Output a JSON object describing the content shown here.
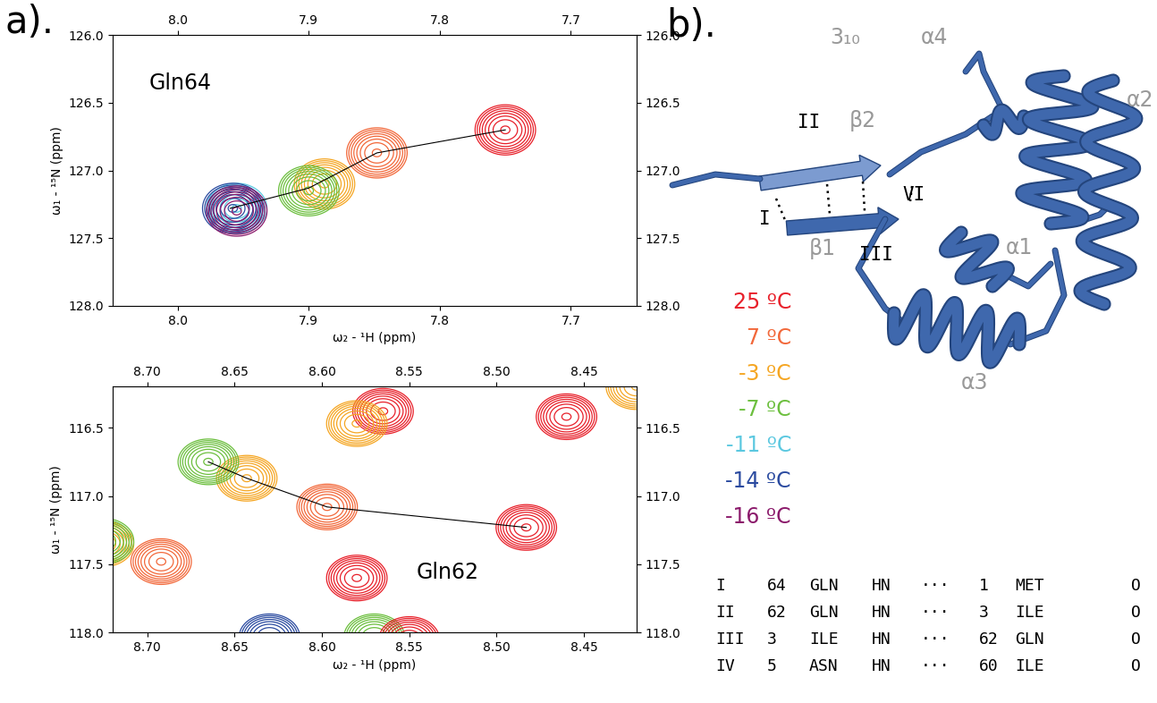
{
  "panel_labels": [
    "a).",
    "b)."
  ],
  "temperatures": [
    {
      "name": "25 ºC",
      "color": "#e8202a"
    },
    {
      "name": "7 ºC",
      "color": "#f2683a"
    },
    {
      "name": "-3 ºC",
      "color": "#f5a623"
    },
    {
      "name": "-7 ºC",
      "color": "#6cbf3e"
    },
    {
      "name": "-11 ºC",
      "color": "#5bc8e0"
    },
    {
      "name": "-14 ºC",
      "color": "#2b4ba0"
    },
    {
      "name": "-16 ºC",
      "color": "#8b1a6b"
    }
  ],
  "chart_data": [
    {
      "type": "contour",
      "label": "Gln64",
      "x_label": "ω₂ - ¹H (ppm)",
      "y_label": "ω₁ - ¹⁵N (ppm)",
      "xlim": [
        8.05,
        7.65
      ],
      "ylim": [
        128.0,
        126.0
      ],
      "xticks": [
        {
          "value": 8.0,
          "label": "8.0"
        },
        {
          "value": 7.9,
          "label": "7.9"
        },
        {
          "value": 7.8,
          "label": "7.8"
        },
        {
          "value": 7.7,
          "label": "7.7"
        }
      ],
      "yticks": [
        {
          "value": 126.0,
          "label": "126.0"
        },
        {
          "value": 126.5,
          "label": "126.5"
        },
        {
          "value": 127.0,
          "label": "127.0"
        },
        {
          "value": 127.5,
          "label": "127.5"
        },
        {
          "value": 128.0,
          "label": "128.0"
        }
      ],
      "peaks": [
        {
          "x": 7.75,
          "y": 126.7,
          "temperature": "25 ºC"
        },
        {
          "x": 7.848,
          "y": 126.87,
          "temperature": "7 ºC"
        },
        {
          "x": 7.888,
          "y": 127.1,
          "temperature": "-3 ºC"
        },
        {
          "x": 7.9,
          "y": 127.15,
          "temperature": "-7 ºC"
        },
        {
          "x": 7.955,
          "y": 127.28,
          "temperature": "-11 ºC"
        },
        {
          "x": 7.958,
          "y": 127.28,
          "temperature": "-14 ºC"
        },
        {
          "x": 7.955,
          "y": 127.3,
          "temperature": "-16 ºC"
        }
      ],
      "trace": {
        "x": [
          7.75,
          7.848,
          7.9,
          7.96
        ],
        "y": [
          126.7,
          126.87,
          127.13,
          127.28
        ]
      }
    },
    {
      "type": "contour",
      "label": "Gln62",
      "x_label": "ω₂ - ¹H (ppm)",
      "y_label": "ω₁ - ¹⁵N (ppm)",
      "xlim": [
        8.72,
        8.42
      ],
      "ylim": [
        118.0,
        116.2
      ],
      "xticks": [
        {
          "value": 8.7,
          "label": "8.70"
        },
        {
          "value": 8.65,
          "label": "8.65"
        },
        {
          "value": 8.6,
          "label": "8.60"
        },
        {
          "value": 8.55,
          "label": "8.55"
        },
        {
          "value": 8.5,
          "label": "8.50"
        },
        {
          "value": 8.45,
          "label": "8.45"
        }
      ],
      "yticks": [
        {
          "value": 116.5,
          "label": "116.5"
        },
        {
          "value": 117.0,
          "label": "117.0"
        },
        {
          "value": 117.5,
          "label": "117.5"
        },
        {
          "value": 118.0,
          "label": "118.0"
        }
      ],
      "peaks": [
        {
          "x": 8.483,
          "y": 117.23,
          "temperature": "25 ºC"
        },
        {
          "x": 8.597,
          "y": 117.08,
          "temperature": "7 ºC"
        },
        {
          "x": 8.643,
          "y": 116.87,
          "temperature": "-3 ºC"
        },
        {
          "x": 8.665,
          "y": 116.75,
          "temperature": "-7 ºC"
        },
        {
          "x": 8.58,
          "y": 117.6,
          "temperature": "25 ºC"
        },
        {
          "x": 8.46,
          "y": 116.42,
          "temperature": "25 ºC"
        },
        {
          "x": 8.565,
          "y": 116.38,
          "temperature": "25 ºC"
        },
        {
          "x": 8.58,
          "y": 116.47,
          "temperature": "-3 ºC"
        },
        {
          "x": 8.42,
          "y": 116.2,
          "temperature": "-3 ºC"
        },
        {
          "x": 8.692,
          "y": 117.48,
          "temperature": "7 ºC"
        },
        {
          "x": 8.725,
          "y": 117.35,
          "temperature": "-3 ºC"
        },
        {
          "x": 8.725,
          "y": 117.33,
          "temperature": "-7 ºC"
        },
        {
          "x": 8.63,
          "y": 118.03,
          "temperature": "-14 ºC"
        },
        {
          "x": 8.57,
          "y": 118.03,
          "temperature": "-7 ºC"
        },
        {
          "x": 8.55,
          "y": 118.05,
          "temperature": "25 ºC"
        }
      ],
      "trace": {
        "x": [
          8.483,
          8.597,
          8.643,
          8.665
        ],
        "y": [
          117.23,
          117.08,
          116.87,
          116.75
        ]
      }
    }
  ],
  "structure": {
    "secondary_structure": [
      "3₁₀",
      "α4",
      "α2",
      "β2",
      "α1",
      "β1",
      "α3"
    ],
    "hbond_labels": [
      "I",
      "II",
      "III",
      "VI"
    ]
  },
  "table": {
    "rows": [
      [
        "I",
        "64",
        "GLN",
        "HN",
        "···",
        "1",
        "MET",
        "O"
      ],
      [
        "II",
        "62",
        "GLN",
        "HN",
        "···",
        "3",
        "ILE",
        "O"
      ],
      [
        "III",
        "3",
        "ILE",
        "HN",
        "···",
        "62",
        "GLN",
        "O"
      ],
      [
        "IV",
        "5",
        "ASN",
        "HN",
        "···",
        "60",
        "ILE",
        "O"
      ]
    ]
  }
}
